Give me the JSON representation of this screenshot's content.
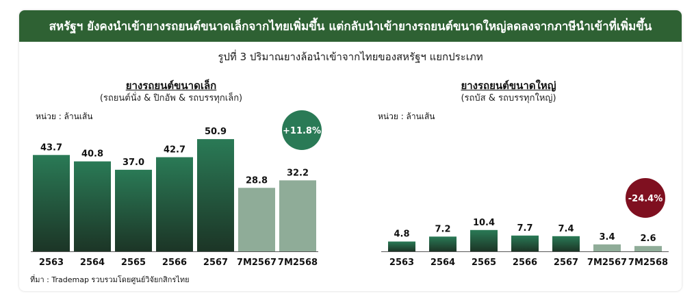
{
  "header": {
    "title": "สหรัฐฯ ยังคงนำเข้ายางรถยนต์ขนาดเล็กจากไทยเพิ่มขึ้น แต่กลับนำเข้ายางรถยนต์ขนาดใหญ่ลดลงจากภาษีนำเข้าที่เพิ่มขึ้น"
  },
  "figure_title": "รูปที่ 3 ปริมาณยางล้อนำเข้าจากไทยของสหรัฐฯ แยกประเภท",
  "source": "ที่มา : Trademap รวบรวมโดยศูนย์วิจัยกสิกรไทย",
  "colors": {
    "header_bg": "#2e6133",
    "bar_dark_top": "#2a7a56",
    "bar_dark_bottom": "#1c3526",
    "bar_light": "#8fac98",
    "badge_up": "#2a7a56",
    "badge_down": "#7f1020"
  },
  "chart_data": [
    {
      "type": "bar",
      "title": "ยางรถยนต์ขนาดเล็ก",
      "subtitle": "(รถยนต์นั่ง & ปิกอัพ & รถบรรทุกเล็ก)",
      "unit": "หน่วย : ล้านเส้น",
      "categories": [
        "2563",
        "2564",
        "2565",
        "2566",
        "2567",
        "7M2567",
        "7M2568"
      ],
      "values": [
        43.7,
        40.8,
        37.0,
        42.7,
        50.9,
        28.8,
        32.2
      ],
      "labels": [
        "43.7",
        "40.8",
        "37.0",
        "42.7",
        "50.9",
        "28.8",
        "32.2"
      ],
      "highlight": [
        false,
        false,
        false,
        false,
        false,
        true,
        true
      ],
      "badge": "+11.8%",
      "grid": false,
      "legend": "none"
    },
    {
      "type": "bar",
      "title": "ยางรถยนต์ขนาดใหญ่",
      "subtitle": "(รถบัส & รถบรรทุกใหญ่)",
      "unit": "หน่วย : ล้านเส้น",
      "categories": [
        "2563",
        "2564",
        "2565",
        "2566",
        "2567",
        "7M2567",
        "7M2568"
      ],
      "values": [
        4.8,
        7.2,
        10.4,
        7.7,
        7.4,
        3.4,
        2.6
      ],
      "labels": [
        "4.8",
        "7.2",
        "10.4",
        "7.7",
        "7.4",
        "3.4",
        "2.6"
      ],
      "highlight": [
        false,
        false,
        false,
        false,
        false,
        true,
        true
      ],
      "badge": "-24.4%",
      "grid": false,
      "legend": "none"
    }
  ]
}
